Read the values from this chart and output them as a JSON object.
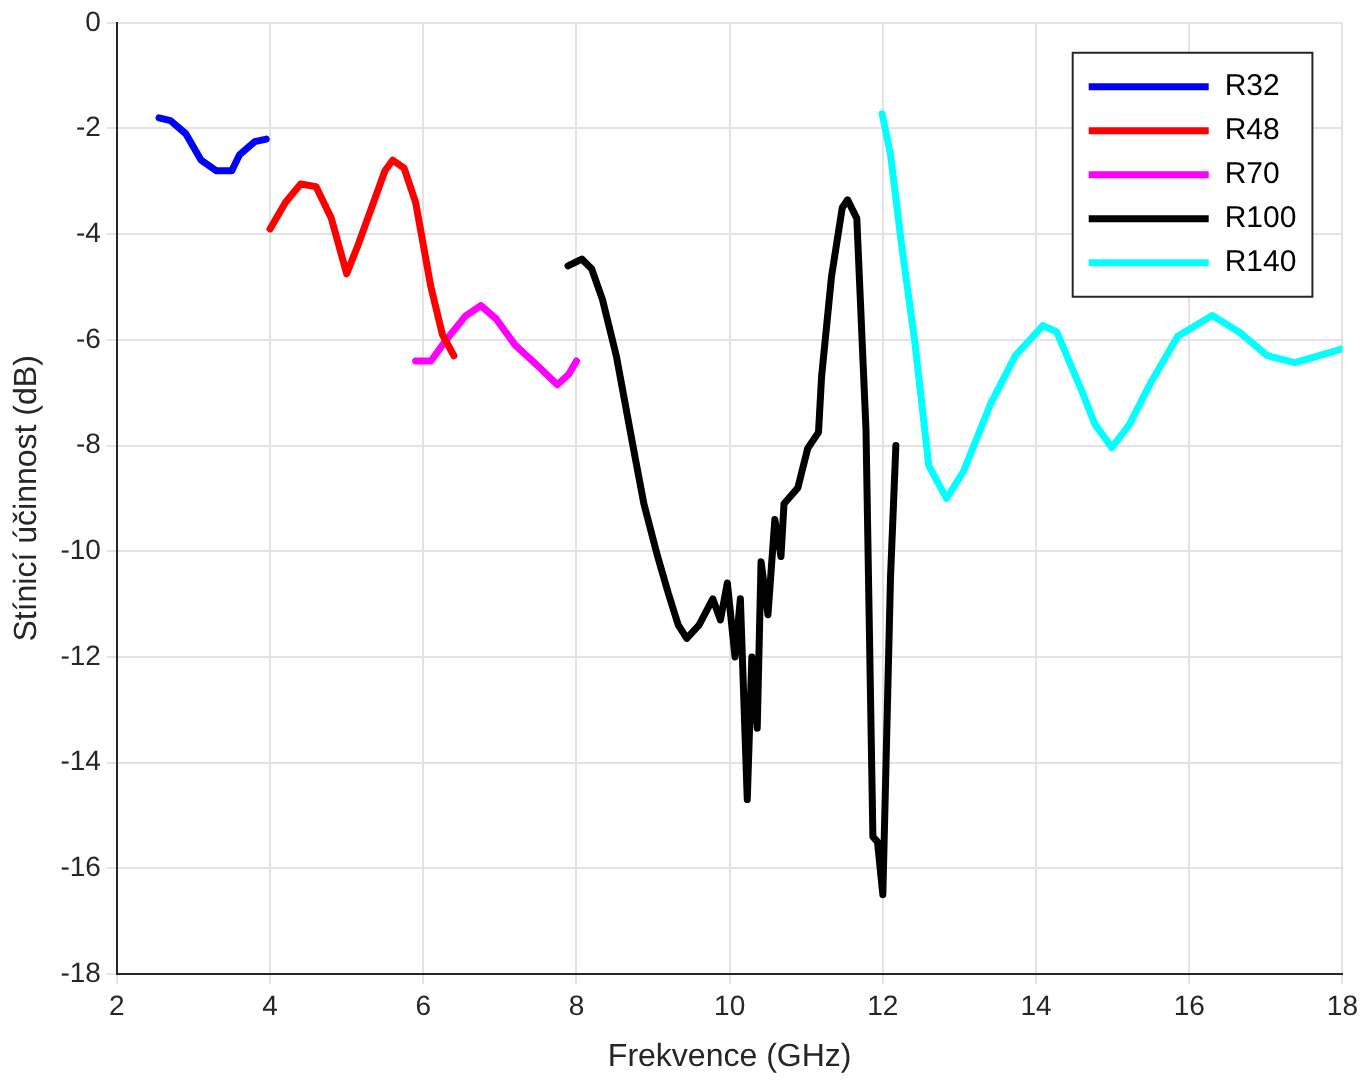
{
  "chart_data": {
    "type": "line",
    "xlabel": "Frekvence (GHz)",
    "ylabel": "Stínicí účinnost (dB)",
    "xlim": [
      2,
      18
    ],
    "xticks": [
      2,
      4,
      6,
      8,
      10,
      12,
      14,
      16,
      18
    ],
    "ylim": [
      -18,
      0
    ],
    "yticks": [
      -18,
      -16,
      -14,
      -12,
      -10,
      -8,
      -6,
      -4,
      -2,
      0
    ],
    "grid": true,
    "legend": "top right",
    "marker": "none",
    "line_style": "solid",
    "series": [
      {
        "name": "R32",
        "color": "#0000ff",
        "x": [
          2.55,
          2.7,
          2.9,
          3.1,
          3.3,
          3.5,
          3.6,
          3.8,
          3.95
        ],
        "values": [
          -1.8,
          -1.85,
          -2.1,
          -2.6,
          -2.8,
          -2.8,
          -2.5,
          -2.25,
          -2.2
        ]
      },
      {
        "name": "R48",
        "color": "#ff0000",
        "x": [
          4.0,
          4.2,
          4.4,
          4.6,
          4.8,
          5.0,
          5.15,
          5.35,
          5.5,
          5.6,
          5.75,
          5.9,
          6.0,
          6.1,
          6.25,
          6.4
        ],
        "values": [
          -3.9,
          -3.4,
          -3.05,
          -3.1,
          -3.7,
          -4.75,
          -4.2,
          -3.4,
          -2.8,
          -2.6,
          -2.75,
          -3.4,
          -4.2,
          -5.0,
          -5.9,
          -6.3
        ]
      },
      {
        "name": "R70",
        "color": "#ff00ff",
        "x": [
          5.9,
          6.1,
          6.3,
          6.55,
          6.75,
          6.95,
          7.2,
          7.5,
          7.75,
          7.9,
          8.0
        ],
        "values": [
          -6.4,
          -6.4,
          -6.0,
          -5.55,
          -5.35,
          -5.6,
          -6.1,
          -6.5,
          -6.85,
          -6.65,
          -6.4
        ]
      },
      {
        "name": "R100",
        "color": "#000000",
        "x": [
          7.89,
          8.07,
          8.2,
          8.34,
          8.52,
          8.75,
          8.88,
          9.06,
          9.2,
          9.33,
          9.44,
          9.6,
          9.78,
          9.88,
          9.97,
          10.07,
          10.14,
          10.23,
          10.29,
          10.36,
          10.41,
          10.5,
          10.59,
          10.67,
          10.71,
          10.89,
          11.02,
          11.16,
          11.2,
          11.33,
          11.47,
          11.54,
          11.66,
          11.78,
          11.87,
          11.93,
          12.0,
          12.1,
          12.17
        ],
        "values": [
          -4.6,
          -4.47,
          -4.66,
          -5.24,
          -6.3,
          -8.1,
          -9.1,
          -10.1,
          -10.8,
          -11.4,
          -11.65,
          -11.4,
          -10.9,
          -11.3,
          -10.6,
          -12,
          -10.9,
          -14.7,
          -12,
          -13.35,
          -10.2,
          -11.2,
          -9.4,
          -10.1,
          -9.1,
          -8.8,
          -8.05,
          -7.75,
          -6.7,
          -4.8,
          -3.5,
          -3.35,
          -3.7,
          -7.7,
          -15.4,
          -15.5,
          -16.5,
          -10.5,
          -8.0
        ]
      },
      {
        "name": "R140",
        "color": "#00ffff",
        "x": [
          11.99,
          12.1,
          12.24,
          12.42,
          12.6,
          12.83,
          13.05,
          13.41,
          13.73,
          14.09,
          14.27,
          14.59,
          14.77,
          14.99,
          15.22,
          15.49,
          15.85,
          16.3,
          16.66,
          17.02,
          17.38,
          17.83,
          18.0
        ],
        "values": [
          -1.72,
          -2.49,
          -4.15,
          -6.07,
          -8.38,
          -9.0,
          -8.5,
          -7.2,
          -6.3,
          -5.73,
          -5.85,
          -6.94,
          -7.6,
          -8.04,
          -7.6,
          -6.83,
          -5.93,
          -5.54,
          -5.86,
          -6.3,
          -6.43,
          -6.24,
          -6.17
        ]
      }
    ]
  }
}
